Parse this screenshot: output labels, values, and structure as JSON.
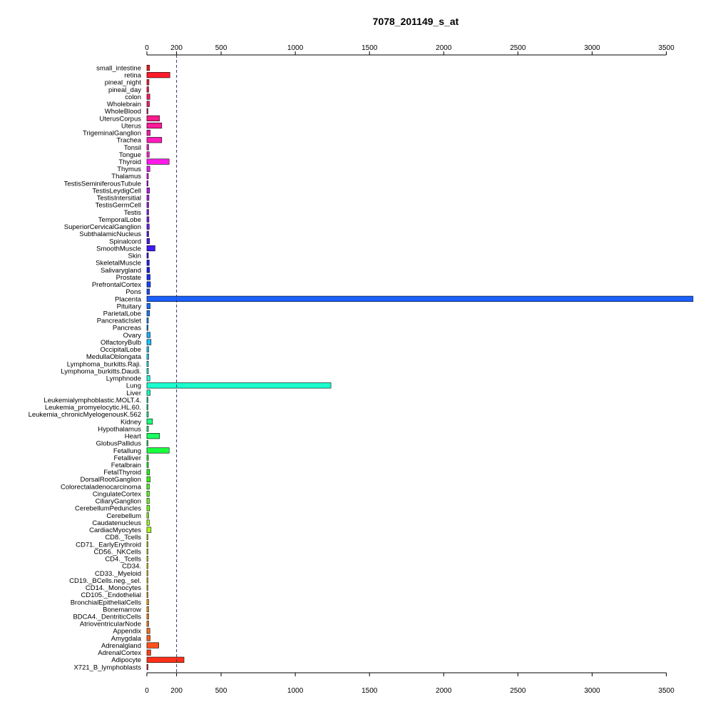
{
  "chart_data": {
    "type": "bar",
    "orientation": "horizontal",
    "title": "7078_201149_s_at",
    "xlabel": "",
    "ylabel": "",
    "xlim": [
      0,
      3680
    ],
    "x_ticks": [
      0,
      200,
      500,
      1000,
      1500,
      2000,
      2500,
      3000,
      3500
    ],
    "x_tick_labels": [
      "0",
      "200",
      "500",
      "1000",
      "1500",
      "2000",
      "2500",
      "3000",
      "3500"
    ],
    "reference_line": 200,
    "grid": false,
    "legend": "none",
    "categories": [
      "small_intestine",
      "retina",
      "pineal_night",
      "pineal_day",
      "colon",
      "Wholebrain",
      "WholeBlood",
      "UterusCorpus",
      "Uterus",
      "TrigeminalGanglion",
      "Trachea",
      "Tonsil",
      "Tongue",
      "Thyroid",
      "Thymus",
      "Thalamus",
      "TestisSeminiferousTubule",
      "TestisLeydigCell",
      "TestisIntersitial",
      "TestisGermCell",
      "Testis",
      "TemporalLobe",
      "SuperiorCervicalGanglion",
      "SubthalamicNucleus",
      "Spinalcord",
      "SmoothMuscle",
      "Skin",
      "SkeletalMuscle",
      "Salivarygland",
      "Prostate",
      "PrefrontalCortex",
      "Pons",
      "Placenta",
      "Pituitary",
      "ParietalLobe",
      "PancreaticIslet",
      "Pancreas",
      "Ovary",
      "OlfactoryBulb",
      "OccipitalLobe",
      "MedullaOblongata",
      "Lymphoma_burkitts.Raji.",
      "Lymphoma_burkitts.Daudi.",
      "Lymphnode",
      "Lung",
      "Liver",
      "Leukemialymphoblastic.MOLT.4.",
      "Leukemia_promyelocytic.HL.60.",
      "Leukemia_chronicMyelogenousK.562",
      "Kidney",
      "Hypothalamus",
      "Heart",
      "GlobusPallidus",
      "Fetallung",
      "Fetalliver",
      "Fetalbrain",
      "FetalThyroid",
      "DorsalRootGanglion",
      "Colorectaladenocarcinoma",
      "CingulateCortex",
      "CiliaryGanglion",
      "CerebellumPeduncles",
      "Cerebellum",
      "Caudatenucleus",
      "CardiacMyocytes",
      "CD8._Tcells",
      "CD71._EarlyErythroid",
      "CD56._NKCells",
      "CD4._Tcells",
      "CD34.",
      "CD33._Myeloid",
      "CD19._BCells.neg._sel.",
      "CD14._Monocytes",
      "CD105._Endothelial",
      "BronchialEpithelialCells",
      "Bonemarrow",
      "BDCA4._DentriticCells",
      "AtrioventricularNode",
      "Appendix",
      "Amygdala",
      "Adrenalgland",
      "AdrenalCortex",
      "Adipocyte",
      "X721_B_lymphoblasts"
    ],
    "values": [
      18,
      155,
      14,
      12,
      20,
      17,
      5,
      85,
      100,
      22,
      100,
      12,
      16,
      150,
      20,
      10,
      8,
      18,
      14,
      12,
      12,
      14,
      16,
      12,
      18,
      55,
      10,
      16,
      18,
      22,
      24,
      18,
      3680,
      22,
      18,
      10,
      8,
      22,
      28,
      12,
      12,
      10,
      10,
      20,
      1240,
      22,
      3,
      5,
      10,
      38,
      10,
      85,
      5,
      150,
      10,
      10,
      18,
      22,
      16,
      16,
      16,
      18,
      12,
      16,
      28,
      3,
      3,
      3,
      3,
      8,
      3,
      3,
      3,
      3,
      12,
      12,
      12,
      12,
      20,
      22,
      80,
      26,
      250,
      3
    ],
    "colors": [
      "#ff1a1a",
      "#ff1a2a",
      "#ff1a3a",
      "#ff1a4a",
      "#ff1a5a",
      "#ff1a6a",
      "#ff1a7a",
      "#ff1a8a",
      "#ff1a9a",
      "#ff1aaa",
      "#ff1aba",
      "#ff1aca",
      "#ff1ada",
      "#ff1aea",
      "#f01aff",
      "#e01aff",
      "#d01aff",
      "#c01aff",
      "#b01aff",
      "#a01aff",
      "#901aff",
      "#801aff",
      "#701aff",
      "#601aff",
      "#501aff",
      "#401aff",
      "#301aff",
      "#201aff",
      "#1a20ff",
      "#1a30ff",
      "#1a40ff",
      "#1a50ff",
      "#1a60ff",
      "#1a70ff",
      "#1a80ff",
      "#1a90ff",
      "#1aa0ff",
      "#1ab0ff",
      "#1ac0ff",
      "#1ad0ff",
      "#1ae0ff",
      "#1af0ff",
      "#1affee",
      "#1affde",
      "#1affce",
      "#1affbe",
      "#1affae",
      "#1aff9e",
      "#1aff8e",
      "#1aff7e",
      "#1aff6e",
      "#1aff5e",
      "#1aff4e",
      "#1aff3e",
      "#1aff2e",
      "#1aff1e",
      "#2aff1a",
      "#3aff1a",
      "#4aff1a",
      "#5aff1a",
      "#6aff1a",
      "#7aff1a",
      "#8aff1a",
      "#9aff1a",
      "#aaff1a",
      "#baff1a",
      "#caff1a",
      "#daff1a",
      "#eaff1a",
      "#faff1a",
      "#fff01a",
      "#ffe01a",
      "#ffd01a",
      "#ffc01a",
      "#ffb01a",
      "#ffa01a",
      "#ff901a",
      "#ff801a",
      "#ff701a",
      "#ff601a",
      "#ff501a",
      "#ff401a",
      "#ff301a",
      "#ff201a"
    ]
  }
}
